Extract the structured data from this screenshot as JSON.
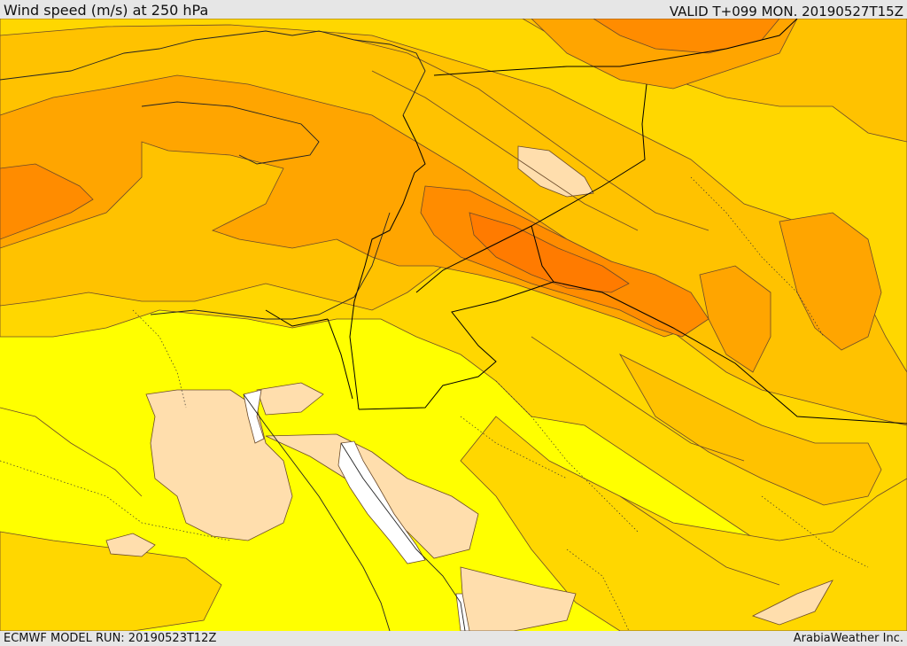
{
  "header": {
    "title": "Wind speed (m/s) at 250 hPa",
    "valid_time": "VALID T+099 MON. 20190527T15Z"
  },
  "footer": {
    "model_run": "ECMWF MODEL RUN: 20190523T12Z",
    "credit": "ArabiaWeather Inc."
  },
  "map": {
    "variable": "wind speed at 250 hPa",
    "colors": {
      "background_band": "#ffff00",
      "band_2": "#ffd700",
      "band_3": "#ffc200",
      "band_4": "#ffa500",
      "band_5": "#ff8c00",
      "band_6": "#ff7b00",
      "low_band": "#ffdead",
      "water_gap": "#ffffff",
      "contour": "#6b4a2a",
      "border": "#000000"
    }
  }
}
